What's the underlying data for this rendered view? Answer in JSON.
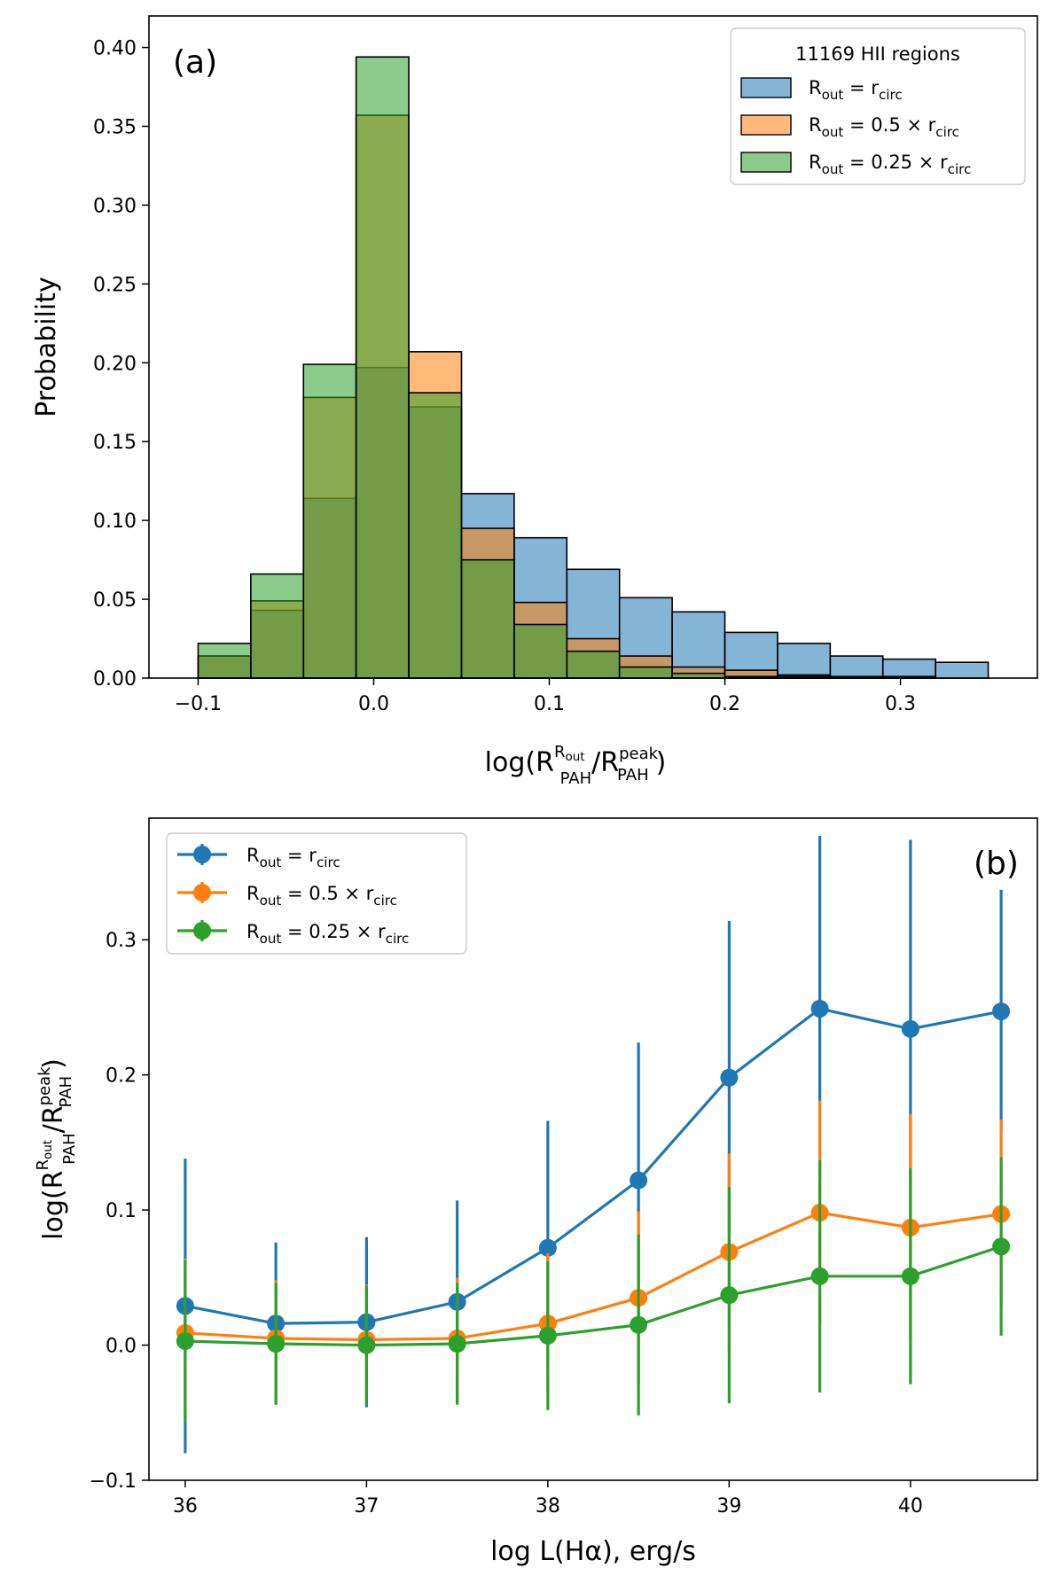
{
  "chart_data": [
    {
      "type": "histogram",
      "panel_label": "(a)",
      "title": "",
      "xlabel": {
        "main": "log(R",
        "sub1": "PAH",
        "sup1": "R",
        "supsub1": "out",
        "mid": "/R",
        "sub2": "PAH",
        "sup2": "peak",
        "end": ")"
      },
      "ylabel": "Probability",
      "xlim": [
        -0.128,
        0.378
      ],
      "ylim": [
        0,
        0.42
      ],
      "xticks": [
        -0.1,
        0.0,
        0.1,
        0.2,
        0.3
      ],
      "xtick_labels": [
        "−0.1",
        "0.0",
        "0.1",
        "0.2",
        "0.3"
      ],
      "yticks": [
        0,
        0.05,
        0.1,
        0.15,
        0.2,
        0.25,
        0.3,
        0.35,
        0.4
      ],
      "ytick_labels": [
        "0.00",
        "0.05",
        "0.10",
        "0.15",
        "0.20",
        "0.25",
        "0.30",
        "0.35",
        "0.40"
      ],
      "bin_edges": [
        -0.1,
        -0.07,
        -0.04,
        -0.01,
        0.02,
        0.05,
        0.08,
        0.11,
        0.14,
        0.17,
        0.2,
        0.23,
        0.26,
        0.29,
        0.32,
        0.35
      ],
      "legend_title": "11169 HII regions",
      "legend_position": "upper right",
      "series": [
        {
          "name": "R_out = r_circ",
          "label": {
            "a": "R",
            "asub": "out",
            "op": " = ",
            "b": "r",
            "bsub": "circ"
          },
          "color": "#1f77b4",
          "values": [
            0.014,
            0.043,
            0.114,
            0.197,
            0.172,
            0.117,
            0.089,
            0.069,
            0.051,
            0.042,
            0.029,
            0.022,
            0.014,
            0.012,
            0.01
          ]
        },
        {
          "name": "R_out = 0.5 × r_circ",
          "label": {
            "a": "R",
            "asub": "out",
            "op": " = 0.5 × ",
            "b": "r",
            "bsub": "circ"
          },
          "color": "#ff7f0e",
          "values": [
            0.014,
            0.049,
            0.178,
            0.357,
            0.207,
            0.095,
            0.048,
            0.025,
            0.014,
            0.007,
            0.005,
            0.002,
            0.001,
            0.001,
            0.0
          ]
        },
        {
          "name": "R_out = 0.25 × r_circ",
          "label": {
            "a": "R",
            "asub": "out",
            "op": " = 0.25 × ",
            "b": "r",
            "bsub": "circ"
          },
          "color": "#2ca02c",
          "values": [
            0.022,
            0.066,
            0.199,
            0.394,
            0.181,
            0.075,
            0.034,
            0.017,
            0.007,
            0.003,
            0.001,
            0.001,
            0.0,
            0.0,
            0.0
          ]
        }
      ]
    },
    {
      "type": "line",
      "panel_label": "(b)",
      "title": "",
      "xlabel": "log L(Hα), erg/s",
      "ylabel": {
        "main": "log(R",
        "sub1": "PAH",
        "sup1": "R",
        "supsub1": "out",
        "mid": "/R",
        "sub2": "PAH",
        "sup2": "peak",
        "end": ")"
      },
      "xlim": [
        35.8,
        40.7
      ],
      "ylim": [
        -0.1,
        0.39
      ],
      "xticks": [
        36,
        37,
        38,
        39,
        40
      ],
      "xtick_labels": [
        "36",
        "37",
        "38",
        "39",
        "40"
      ],
      "yticks": [
        -0.1,
        0.0,
        0.1,
        0.2,
        0.3
      ],
      "ytick_labels": [
        "−0.1",
        "0.0",
        "0.1",
        "0.2",
        "0.3"
      ],
      "x": [
        36,
        36.5,
        37,
        37.5,
        38,
        38.5,
        39,
        39.5,
        40,
        40.5
      ],
      "legend_position": "upper left",
      "series": [
        {
          "name": "R_out = r_circ",
          "label": {
            "a": "R",
            "asub": "out",
            "op": " = ",
            "b": "r",
            "bsub": "circ"
          },
          "color": "#1f77b4",
          "values": [
            0.029,
            0.016,
            0.017,
            0.032,
            0.072,
            0.122,
            0.198,
            0.249,
            0.234,
            0.247
          ],
          "err": [
            0.109,
            0.06,
            0.063,
            0.075,
            0.094,
            0.102,
            0.116,
            0.128,
            0.14,
            0.09
          ]
        },
        {
          "name": "R_out = 0.5 × r_circ",
          "label": {
            "a": "R",
            "asub": "out",
            "op": " = 0.5 × ",
            "b": "r",
            "bsub": "circ"
          },
          "color": "#ff7f0e",
          "values": [
            0.009,
            0.005,
            0.004,
            0.005,
            0.016,
            0.035,
            0.069,
            0.098,
            0.087,
            0.097
          ],
          "err": [
            0.055,
            0.043,
            0.041,
            0.045,
            0.052,
            0.064,
            0.073,
            0.083,
            0.084,
            0.07
          ]
        },
        {
          "name": "R_out = 0.25 × r_circ",
          "label": {
            "a": "R",
            "asub": "out",
            "op": " = 0.25 × ",
            "b": "r",
            "bsub": "circ"
          },
          "color": "#2ca02c",
          "values": [
            0.003,
            0.001,
            0.0,
            0.001,
            0.007,
            0.015,
            0.037,
            0.051,
            0.051,
            0.073
          ],
          "err": [
            0.06,
            0.045,
            0.044,
            0.045,
            0.055,
            0.067,
            0.08,
            0.086,
            0.08,
            0.066
          ]
        }
      ]
    }
  ]
}
